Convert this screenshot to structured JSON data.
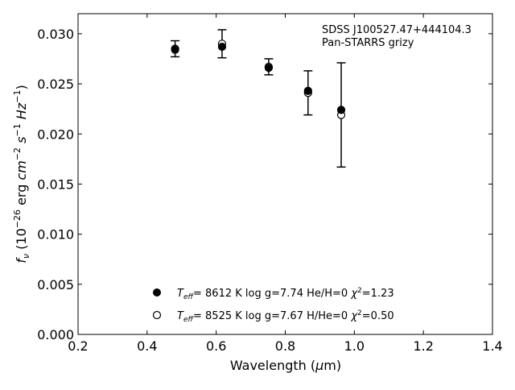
{
  "chart_data": {
    "type": "scatter",
    "xlabel": "Wavelength (μm)",
    "ylabel": "f_ν (10^-26 erg cm^-2 s^-1 Hz^-1)",
    "xlim": [
      0.2,
      1.4
    ],
    "ylim": [
      0.0,
      0.032
    ],
    "x_ticks": [
      "0.2",
      "0.4",
      "0.6",
      "0.8",
      "1.0",
      "1.2",
      "1.4"
    ],
    "y_ticks": [
      "0.000",
      "0.005",
      "0.010",
      "0.015",
      "0.020",
      "0.025",
      "0.030"
    ],
    "annotations": [
      "SDSS J100527.47+444104.3",
      "Pan-STARRS grizy"
    ],
    "grid": false,
    "legend_position": "lower-center",
    "observed": {
      "x": [
        0.481,
        0.617,
        0.752,
        0.866,
        0.962
      ],
      "y": [
        0.0285,
        0.029,
        0.0267,
        0.0241,
        0.0219
      ],
      "yerr": [
        0.0008,
        0.0014,
        0.0008,
        0.0022,
        0.0052
      ]
    },
    "series": [
      {
        "name": "Teff= 8612 K log g=7.74 He/H=0 χ2=1.23",
        "marker": "filled",
        "x": [
          0.481,
          0.617,
          0.752,
          0.866,
          0.962
        ],
        "y": [
          0.0285,
          0.0287,
          0.0266,
          0.0243,
          0.0224
        ]
      },
      {
        "name": "Teff= 8525 K log g=7.67 H/He=0 χ2=0.50",
        "marker": "open",
        "x": [
          0.481,
          0.617,
          0.752,
          0.866,
          0.962
        ],
        "y": [
          0.0284,
          0.029,
          0.0267,
          0.0241,
          0.0219
        ]
      }
    ],
    "legend": [
      {
        "teff": "8612 K",
        "logg": "log g=7.74",
        "comp": "He/H=0",
        "chi2": "=1.23"
      },
      {
        "teff": "8525 K",
        "logg": "log g=7.67",
        "comp": "H/He=0",
        "chi2": "=0.50"
      }
    ]
  }
}
